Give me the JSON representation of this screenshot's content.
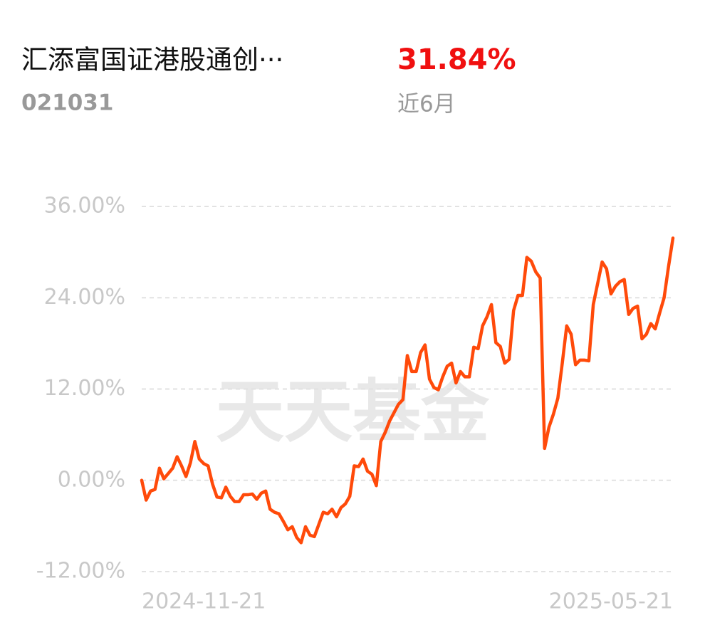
{
  "header": {
    "title": "汇添富国证港股通创···",
    "code": "021031",
    "return": "31.84%",
    "period": "近6月"
  },
  "watermark": "天天基金",
  "chart_data": {
    "type": "line",
    "color": "#ff4a0a",
    "grid": true,
    "categories": [
      "2024-11-21",
      null,
      null,
      null,
      null,
      null,
      null,
      null,
      null,
      null,
      null,
      null,
      null,
      null,
      null,
      null,
      null,
      null,
      null,
      null,
      null,
      null,
      null,
      null,
      null,
      null,
      null,
      null,
      null,
      null,
      null,
      null,
      null,
      null,
      null,
      null,
      null,
      null,
      null,
      null,
      null,
      null,
      null,
      null,
      null,
      null,
      null,
      null,
      null,
      null,
      null,
      null,
      null,
      null,
      null,
      null,
      null,
      null,
      null,
      null,
      null,
      null,
      null,
      null,
      null,
      null,
      null,
      null,
      null,
      null,
      null,
      null,
      null,
      null,
      null,
      null,
      null,
      null,
      null,
      null,
      null,
      null,
      null,
      null,
      null,
      null,
      null,
      null,
      null,
      null,
      null,
      null,
      null,
      null,
      null,
      null,
      null,
      null,
      null,
      null,
      null,
      null,
      null,
      null,
      null,
      null,
      null,
      null,
      null,
      null,
      null,
      null,
      null,
      null,
      null,
      null,
      null,
      null,
      null,
      null,
      "2025-05-21"
    ],
    "values": [
      0,
      -2.6,
      -1.4,
      -1.2,
      1.6,
      0.2,
      0.9,
      1.6,
      3.1,
      1.9,
      0.5,
      2.3,
      5.1,
      2.8,
      2.2,
      1.9,
      -0.5,
      -2.2,
      -2.3,
      -0.9,
      -2.1,
      -2.8,
      -2.8,
      -1.9,
      -1.9,
      -1.8,
      -2.5,
      -1.7,
      -1.4,
      -3.8,
      -4.2,
      -4.4,
      -5.4,
      -6.5,
      -6.1,
      -7.5,
      -8.2,
      -6.1,
      -7.2,
      -7.4,
      -5.8,
      -4.2,
      -4.4,
      -3.8,
      -4.8,
      -3.6,
      -3.1,
      -2.1,
      1.9,
      1.8,
      2.8,
      1.2,
      0.8,
      -0.7,
      5.1,
      6.3,
      7.8,
      8.9,
      10.0,
      10.6,
      16.4,
      14.3,
      14.3,
      16.8,
      17.8,
      13.3,
      12.2,
      11.9,
      13.6,
      15.0,
      15.4,
      12.8,
      14.3,
      13.6,
      13.6,
      17.5,
      17.3,
      20.3,
      21.5,
      23.1,
      18.1,
      17.6,
      15.4,
      15.9,
      22.3,
      24.3,
      24.3,
      29.3,
      28.8,
      27.4,
      26.6,
      4.2,
      7.0,
      8.7,
      10.8,
      15.4,
      20.3,
      19.2,
      15.2,
      15.8,
      15.8,
      15.7,
      23.1,
      25.9,
      28.7,
      27.8,
      24.5,
      25.5,
      26.1,
      26.4,
      21.8,
      22.6,
      22.9,
      18.6,
      19.2,
      20.6,
      19.9,
      22.0,
      24.0,
      28.1,
      31.84
    ],
    "ylim": [
      -12,
      36
    ],
    "yticks": [
      {
        "value": -12,
        "label": "-12.00%"
      },
      {
        "value": 0,
        "label": "0.00%"
      },
      {
        "value": 12,
        "label": "12.00%"
      },
      {
        "value": 24,
        "label": "24.00%"
      },
      {
        "value": 36,
        "label": "36.00%"
      }
    ]
  }
}
